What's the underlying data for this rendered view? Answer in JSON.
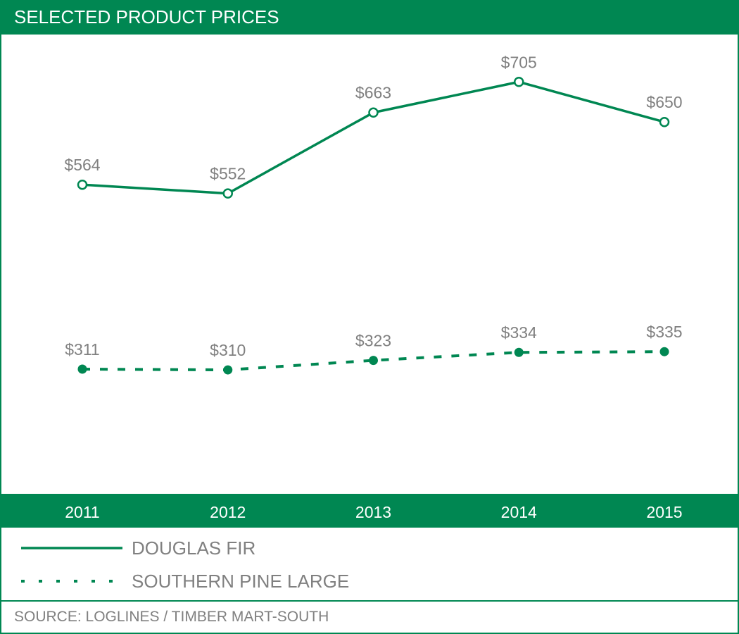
{
  "header": {
    "title": "SELECTED PRODUCT PRICES"
  },
  "colors": {
    "brand": "#008752",
    "label_gray": "#808080",
    "background": "#ffffff"
  },
  "legend": {
    "items": [
      {
        "label": "DOUGLAS FIR",
        "style": "solid"
      },
      {
        "label": "SOUTHERN PINE LARGE",
        "style": "dashed"
      }
    ]
  },
  "footer": {
    "source": "SOURCE: LOGLINES / TIMBER MART-SOUTH"
  },
  "chart_data": {
    "type": "line",
    "title": "SELECTED PRODUCT PRICES",
    "xlabel": "",
    "ylabel": "",
    "categories": [
      "2011",
      "2012",
      "2013",
      "2014",
      "2015"
    ],
    "ylim": [
      140,
      770
    ],
    "grid": false,
    "legend_position": "bottom-left",
    "series": [
      {
        "name": "DOUGLAS FIR",
        "line": "solid",
        "marker": "hollow-circle",
        "values": [
          564,
          552,
          663,
          705,
          650
        ],
        "labels": [
          "$564",
          "$552",
          "$663",
          "$705",
          "$650"
        ]
      },
      {
        "name": "SOUTHERN PINE LARGE",
        "line": "dashed",
        "marker": "filled-circle",
        "values": [
          311,
          310,
          323,
          334,
          335
        ],
        "labels": [
          "$311",
          "$310",
          "$323",
          "$334",
          "$335"
        ]
      }
    ],
    "annotations": [
      "SOURCE: LOGLINES / TIMBER MART-SOUTH"
    ]
  }
}
